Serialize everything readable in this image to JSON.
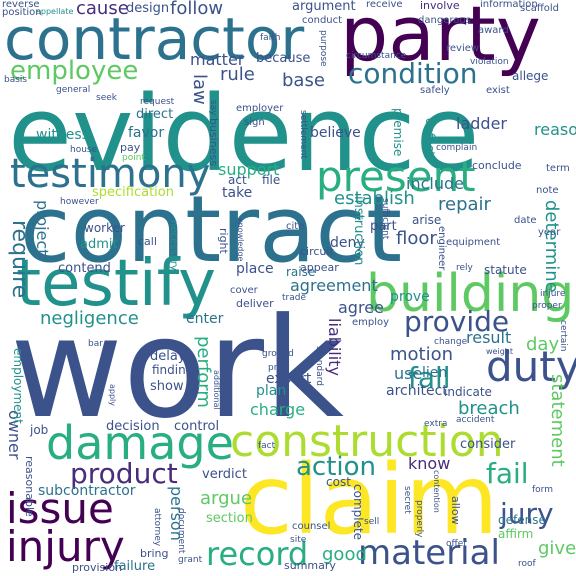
{
  "words": [
    {
      "text": "evidence",
      "color": "#21918c"
    },
    {
      "text": "contract",
      "color": "#2c728e"
    },
    {
      "text": "work",
      "color": "#3b528b"
    },
    {
      "text": "party",
      "color": "#440154"
    },
    {
      "text": "contractor",
      "color": "#2c728e"
    },
    {
      "text": "claim",
      "color": "#fde725"
    },
    {
      "text": "testify",
      "color": "#21918c"
    },
    {
      "text": "building",
      "color": "#5ec962"
    },
    {
      "text": "construction",
      "color": "#addc30"
    },
    {
      "text": "testimony",
      "color": "#2c728e"
    },
    {
      "text": "present",
      "color": "#28ae80"
    },
    {
      "text": "damage",
      "color": "#28ae80"
    },
    {
      "text": "issue",
      "color": "#440154"
    },
    {
      "text": "injury",
      "color": "#440154"
    },
    {
      "text": "duty",
      "color": "#3b528b"
    },
    {
      "text": "material",
      "color": "#3b528b"
    },
    {
      "text": "record",
      "color": "#28ae80"
    },
    {
      "text": "product",
      "color": "#472d7b"
    },
    {
      "text": "provide",
      "color": "#3b528b"
    },
    {
      "text": "condition",
      "color": "#2c728e"
    },
    {
      "text": "employee",
      "color": "#5ec962"
    },
    {
      "text": "action",
      "color": "#21918c"
    },
    {
      "text": "fail",
      "color": "#28ae80"
    },
    {
      "text": "jury",
      "color": "#3b528b"
    },
    {
      "text": "fall",
      "color": "#21918c"
    },
    {
      "text": "require",
      "color": "#2c728e"
    },
    {
      "text": "establish",
      "color": "#21918c"
    },
    {
      "text": "agreement",
      "color": "#2c728e"
    },
    {
      "text": "negligence",
      "color": "#21918c"
    },
    {
      "text": "liability",
      "color": "#472d7b"
    },
    {
      "text": "person",
      "color": "#2c728e"
    },
    {
      "text": "statement",
      "color": "#5ec962"
    },
    {
      "text": "breach",
      "color": "#21918c"
    },
    {
      "text": "cause",
      "color": "#472d7b"
    },
    {
      "text": "follow",
      "color": "#3b528b"
    },
    {
      "text": "support",
      "color": "#28ae80"
    },
    {
      "text": "repair",
      "color": "#2c728e"
    },
    {
      "text": "floor",
      "color": "#3b528b"
    },
    {
      "text": "include",
      "color": "#2c728e"
    },
    {
      "text": "determine",
      "color": "#21918c"
    },
    {
      "text": "argue",
      "color": "#5ec962"
    },
    {
      "text": "perform",
      "color": "#28ae80"
    },
    {
      "text": "motion",
      "color": "#3b528b"
    },
    {
      "text": "charge",
      "color": "#28ae80"
    },
    {
      "text": "use",
      "color": "#2c728e"
    },
    {
      "text": "lien",
      "color": "#2c728e"
    },
    {
      "text": "give",
      "color": "#5ec962"
    },
    {
      "text": "good",
      "color": "#28ae80"
    },
    {
      "text": "base",
      "color": "#3b528b"
    },
    {
      "text": "rule",
      "color": "#3b528b"
    },
    {
      "text": "law",
      "color": "#3b528b"
    },
    {
      "text": "matter",
      "color": "#3b528b"
    },
    {
      "text": "project",
      "color": "#2c728e"
    },
    {
      "text": "owner",
      "color": "#3b528b"
    },
    {
      "text": "day",
      "color": "#5ec962"
    },
    {
      "text": "result",
      "color": "#2c728e"
    },
    {
      "text": "agree",
      "color": "#3b528b"
    },
    {
      "text": "know",
      "color": "#472d7b"
    },
    {
      "text": "subcontractor",
      "color": "#2c728e"
    },
    {
      "text": "ladder",
      "color": "#3b528b"
    },
    {
      "text": "believe",
      "color": "#3b528b"
    },
    {
      "text": "design",
      "color": "#3b528b"
    },
    {
      "text": "argument",
      "color": "#3b528b"
    },
    {
      "text": "reason",
      "color": "#21918c"
    },
    {
      "text": "witness",
      "color": "#21918c"
    },
    {
      "text": "favor",
      "color": "#2c728e"
    },
    {
      "text": "direct",
      "color": "#2c728e"
    },
    {
      "text": "because",
      "color": "#3b528b"
    },
    {
      "text": "specification",
      "color": "#addc30"
    },
    {
      "text": "architect",
      "color": "#3b528b"
    },
    {
      "text": "expert",
      "color": "#3b528b"
    },
    {
      "text": "enter",
      "color": "#2c728e"
    },
    {
      "text": "deny",
      "color": "#3b528b"
    },
    {
      "text": "floor",
      "color": "#3b528b"
    },
    {
      "text": "prove",
      "color": "#21918c"
    },
    {
      "text": "place",
      "color": "#3b528b"
    },
    {
      "text": "instruction",
      "color": "#21918c"
    },
    {
      "text": "take",
      "color": "#3b528b"
    },
    {
      "text": "act",
      "color": "#3b528b"
    },
    {
      "text": "file",
      "color": "#3b528b"
    },
    {
      "text": "admit",
      "color": "#21918c"
    },
    {
      "text": "contend",
      "color": "#3b528b"
    },
    {
      "text": "raise",
      "color": "#2c728e"
    },
    {
      "text": "part",
      "color": "#3b528b"
    },
    {
      "text": "arise",
      "color": "#3b528b"
    },
    {
      "text": "plan",
      "color": "#21918c"
    },
    {
      "text": "control",
      "color": "#3b528b"
    },
    {
      "text": "decision",
      "color": "#3b528b"
    },
    {
      "text": "show",
      "color": "#3b528b"
    },
    {
      "text": "delay",
      "color": "#3b528b"
    },
    {
      "text": "finding",
      "color": "#3b528b"
    },
    {
      "text": "verdict",
      "color": "#3b528b"
    },
    {
      "text": "cost",
      "color": "#3b528b"
    },
    {
      "text": "section",
      "color": "#5ec962"
    },
    {
      "text": "consider",
      "color": "#3b528b"
    },
    {
      "text": "indicate",
      "color": "#3b528b"
    },
    {
      "text": "employment",
      "color": "#21918c"
    },
    {
      "text": "job",
      "color": "#3b528b"
    },
    {
      "text": "complete",
      "color": "#3b528b"
    },
    {
      "text": "defense",
      "color": "#2c728e"
    },
    {
      "text": "affirm",
      "color": "#5ec962"
    },
    {
      "text": "reasonable",
      "color": "#3b528b"
    },
    {
      "text": "failure",
      "color": "#2c728e"
    },
    {
      "text": "bring",
      "color": "#3b528b"
    },
    {
      "text": "summary",
      "color": "#3b528b"
    },
    {
      "text": "provision",
      "color": "#3b528b"
    },
    {
      "text": "receive",
      "color": "#3b528b"
    },
    {
      "text": "involve",
      "color": "#472d7b"
    },
    {
      "text": "information",
      "color": "#3b528b"
    },
    {
      "text": "reverse",
      "color": "#3b528b"
    },
    {
      "text": "appellate",
      "color": "#21918c"
    },
    {
      "text": "position",
      "color": "#3b528b"
    },
    {
      "text": "scaffold",
      "color": "#3b528b"
    },
    {
      "text": "circumstance",
      "color": "#3b528b"
    },
    {
      "text": "violation",
      "color": "#3b528b"
    },
    {
      "text": "allege",
      "color": "#3b528b"
    },
    {
      "text": "premise",
      "color": "#21918c"
    },
    {
      "text": "defect",
      "color": "#21918c"
    },
    {
      "text": "sufficient",
      "color": "#3b528b"
    },
    {
      "text": "engineer",
      "color": "#3b528b"
    },
    {
      "text": "equipment",
      "color": "#3b528b"
    },
    {
      "text": "statute",
      "color": "#3b528b"
    },
    {
      "text": "circuit",
      "color": "#3b528b"
    },
    {
      "text": "appear",
      "color": "#3b528b"
    },
    {
      "text": "employ",
      "color": "#3b528b"
    },
    {
      "text": "deliver",
      "color": "#3b528b"
    },
    {
      "text": "necessary",
      "color": "#21918c"
    },
    {
      "text": "worker",
      "color": "#3b528b"
    },
    {
      "text": "call",
      "color": "#3b528b"
    },
    {
      "text": "business",
      "color": "#3b528b"
    },
    {
      "text": "conclude",
      "color": "#3b528b"
    },
    {
      "text": "term",
      "color": "#3b528b"
    },
    {
      "text": "note",
      "color": "#3b528b"
    },
    {
      "text": "year",
      "color": "#3b528b"
    },
    {
      "text": "date",
      "color": "#3b528b"
    },
    {
      "text": "however",
      "color": "#3b528b"
    },
    {
      "text": "request",
      "color": "#3b528b"
    },
    {
      "text": "pay",
      "color": "#3b528b"
    },
    {
      "text": "point",
      "color": "#5ec962"
    },
    {
      "text": "employer",
      "color": "#3b528b"
    },
    {
      "text": "sign",
      "color": "#3b528b"
    },
    {
      "text": "general",
      "color": "#3b528b"
    },
    {
      "text": "seek",
      "color": "#3b528b"
    },
    {
      "text": "conduct",
      "color": "#3b528b"
    },
    {
      "text": "purpose",
      "color": "#3b528b"
    },
    {
      "text": "dangerous",
      "color": "#3b528b"
    },
    {
      "text": "award",
      "color": "#3b528b"
    },
    {
      "text": "review",
      "color": "#3b528b"
    },
    {
      "text": "safely",
      "color": "#3b528b"
    },
    {
      "text": "exist",
      "color": "#3b528b"
    },
    {
      "text": "house",
      "color": "#3b528b"
    },
    {
      "text": "complain",
      "color": "#3b528b"
    },
    {
      "text": "accident",
      "color": "#3b528b"
    },
    {
      "text": "extra",
      "color": "#3b528b"
    },
    {
      "text": "change",
      "color": "#3b528b"
    },
    {
      "text": "weight",
      "color": "#3b528b"
    },
    {
      "text": "standard",
      "color": "#3b528b"
    },
    {
      "text": "ground",
      "color": "#3b528b"
    },
    {
      "text": "counsel",
      "color": "#3b528b"
    },
    {
      "text": "site",
      "color": "#3b528b"
    },
    {
      "text": "document",
      "color": "#3b528b"
    },
    {
      "text": "attorney",
      "color": "#3b528b"
    },
    {
      "text": "offer",
      "color": "#3b528b"
    },
    {
      "text": "grant",
      "color": "#3b528b"
    },
    {
      "text": "form",
      "color": "#3b528b"
    },
    {
      "text": "secret",
      "color": "#3b528b"
    },
    {
      "text": "certain",
      "color": "#3b528b"
    },
    {
      "text": "proper",
      "color": "#3b528b"
    },
    {
      "text": "basis",
      "color": "#3b528b"
    },
    {
      "text": "err",
      "color": "#3b528b"
    },
    {
      "text": "bar",
      "color": "#3b528b"
    },
    {
      "text": "sell",
      "color": "#3b528b"
    },
    {
      "text": "roof",
      "color": "#3b528b"
    },
    {
      "text": "apply",
      "color": "#3b528b"
    },
    {
      "text": "settlement",
      "color": "#3b528b"
    },
    {
      "text": "knowledge",
      "color": "#3b528b"
    },
    {
      "text": "prior",
      "color": "#3b528b"
    },
    {
      "text": "additional",
      "color": "#3b528b"
    },
    {
      "text": "cover",
      "color": "#3b528b"
    },
    {
      "text": "cite",
      "color": "#3b528b"
    },
    {
      "text": "rely",
      "color": "#3b528b"
    },
    {
      "text": "trade",
      "color": "#3b528b"
    },
    {
      "text": "properly",
      "color": "#3b528b"
    },
    {
      "text": "fact",
      "color": "#3b528b"
    },
    {
      "text": "faith",
      "color": "#3b528b"
    },
    {
      "text": "allow",
      "color": "#3b528b"
    },
    {
      "text": "right",
      "color": "#3b528b"
    },
    {
      "text": "injure",
      "color": "#3b528b"
    },
    {
      "text": "contention",
      "color": "#3b528b"
    },
    {
      "text": "say",
      "color": "#3b528b"
    }
  ]
}
